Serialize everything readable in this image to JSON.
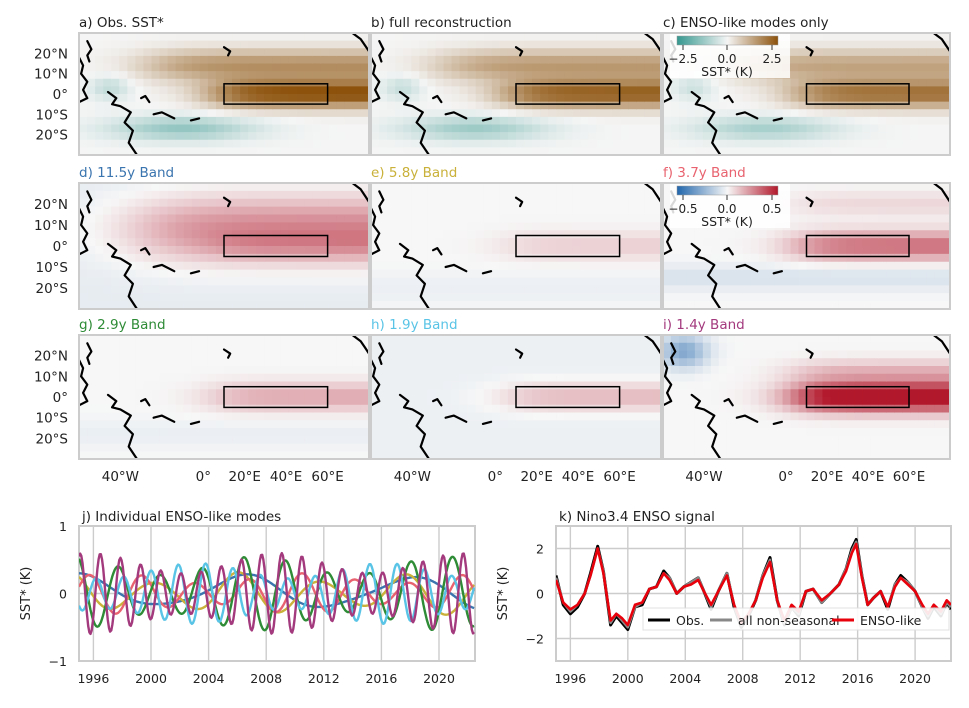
{
  "colors": {
    "sst_neg": "#35978f",
    "sst_pos": "#8c510a",
    "band_neg": "#2166ac",
    "band_pos": "#b2182b",
    "frame": "#cccccc",
    "grid": "#cccccc",
    "coast": "#000000"
  },
  "maps": {
    "y_ticks": [
      "20°N",
      "10°N",
      "0°",
      "10°S",
      "20°S"
    ],
    "x_ticks": [
      "40°W",
      "0°",
      "20°E",
      "40°E",
      "60°E"
    ],
    "panels": [
      {
        "title": "a) Obs. SST*",
        "color": "#222222",
        "field": "sst",
        "amp": 1.0
      },
      {
        "title": "b) full reconstruction",
        "color": "#222222",
        "field": "sst",
        "amp": 0.9
      },
      {
        "title": "c) ENSO-like modes only",
        "color": "#222222",
        "field": "sst",
        "amp": 0.8
      },
      {
        "title": "d) 11.5y Band",
        "color": "#3b75af",
        "field": "b115",
        "amp": 0.55
      },
      {
        "title": "e)  5.8y Band",
        "color": "#c9b13a",
        "field": "b58",
        "amp": 0.25
      },
      {
        "title": "f)  3.7y Band",
        "color": "#e8636f",
        "field": "b37",
        "amp": 0.5
      },
      {
        "title": "g)  2.9y Band",
        "color": "#2e8b36",
        "field": "b29",
        "amp": 0.35
      },
      {
        "title": "h)  1.9y Band",
        "color": "#5ac4e6",
        "field": "b19",
        "amp": 0.35
      },
      {
        "title": "i)  1.4y Band",
        "color": "#a33a7e",
        "field": "b14",
        "amp": 0.85
      }
    ],
    "colorbars": [
      {
        "label": "SST* (K)",
        "ticks": [
          "−2.5",
          "0.0",
          "2.5"
        ]
      },
      {
        "label": "SST* (K)",
        "ticks": [
          "−0.5",
          "0.0",
          "0.5"
        ]
      }
    ]
  },
  "chart_data": [
    {
      "type": "line",
      "title": "j) Individual ENSO-like modes",
      "ylabel": "SST* (K)",
      "xlim": [
        1995,
        2022.5
      ],
      "ylim": [
        -1,
        1
      ],
      "yticks": [
        -1,
        0,
        1
      ],
      "xticks": [
        1996,
        2000,
        2004,
        2008,
        2012,
        2016,
        2020
      ],
      "series": [
        {
          "band": "11.5y",
          "color": "#3b75af",
          "period": 11.5,
          "amp": 0.3,
          "phase": 1.6
        },
        {
          "band": "5.8y",
          "color": "#c9b13a",
          "period": 5.8,
          "amp": 0.32,
          "phase": 2.2
        },
        {
          "band": "3.7y",
          "color": "#e8636f",
          "period": 3.7,
          "amp": 0.3,
          "phase": 0.4
        },
        {
          "band": "2.9y",
          "color": "#2e8b36",
          "period": 2.9,
          "amp": 0.55,
          "phase": 1.9
        },
        {
          "band": "1.9y",
          "color": "#5ac4e6",
          "period": 1.9,
          "amp": 0.45,
          "phase": 3.9
        },
        {
          "band": "1.4y",
          "color": "#a33a7e",
          "period": 1.4,
          "amp": 0.6,
          "phase": 1.2
        }
      ]
    },
    {
      "type": "line",
      "title": "k) Nino3.4 ENSO signal",
      "ylabel": "SST* (K)",
      "xlim": [
        1995,
        2022.5
      ],
      "ylim": [
        -3,
        3
      ],
      "yticks": [
        -2,
        0,
        2
      ],
      "xticks": [
        1996,
        2000,
        2004,
        2008,
        2012,
        2016,
        2020
      ],
      "legend": {
        "placement": "bottom-right"
      },
      "x": [
        1995.0,
        1995.5,
        1996.0,
        1996.5,
        1997.0,
        1997.4,
        1997.9,
        1998.3,
        1998.8,
        1999.2,
        1999.6,
        2000.0,
        2000.5,
        2001.0,
        2001.5,
        2002.0,
        2002.5,
        2002.9,
        2003.4,
        2003.9,
        2004.4,
        2004.9,
        2005.3,
        2005.8,
        2006.3,
        2006.9,
        2007.4,
        2007.9,
        2008.4,
        2008.9,
        2009.4,
        2009.9,
        2010.4,
        2010.9,
        2011.4,
        2011.9,
        2012.4,
        2012.9,
        2013.5,
        2014.1,
        2014.7,
        2015.2,
        2015.6,
        2015.9,
        2016.3,
        2016.7,
        2017.1,
        2017.6,
        2018.1,
        2018.6,
        2019.0,
        2019.5,
        2020.0,
        2020.5,
        2020.9,
        2021.3,
        2021.8,
        2022.2,
        2022.5
      ],
      "series": [
        {
          "name": "Obs.",
          "color": "#000000",
          "values": [
            0.8,
            -0.5,
            -0.9,
            -0.6,
            0.0,
            0.9,
            2.1,
            1.0,
            -1.4,
            -1.0,
            -1.3,
            -1.6,
            -0.6,
            -0.5,
            0.2,
            0.3,
            1.0,
            0.7,
            0.0,
            0.3,
            0.5,
            0.7,
            0.1,
            -0.7,
            0.1,
            0.9,
            -0.6,
            -1.5,
            -1.0,
            -0.3,
            0.8,
            1.6,
            -0.3,
            -1.4,
            -0.6,
            -1.0,
            0.1,
            0.2,
            -0.4,
            0.0,
            0.4,
            1.1,
            2.0,
            2.4,
            0.8,
            -0.5,
            -0.2,
            0.1,
            -0.7,
            0.4,
            0.8,
            0.5,
            0.1,
            -0.6,
            -1.1,
            -0.6,
            -1.0,
            -0.4,
            -0.7
          ]
        },
        {
          "name": "all non-seasonal",
          "color": "#888888",
          "values": [
            0.7,
            -0.4,
            -0.8,
            -0.5,
            0.0,
            0.8,
            2.0,
            1.0,
            -1.3,
            -0.9,
            -1.2,
            -1.5,
            -0.6,
            -0.4,
            0.2,
            0.3,
            0.9,
            0.7,
            0.0,
            0.3,
            0.5,
            0.7,
            0.1,
            -0.6,
            0.1,
            0.9,
            -0.5,
            -1.4,
            -0.9,
            -0.3,
            0.8,
            1.5,
            -0.3,
            -1.3,
            -0.6,
            -0.9,
            0.1,
            0.2,
            -0.4,
            0.0,
            0.4,
            1.1,
            1.9,
            2.3,
            0.8,
            -0.5,
            -0.2,
            0.1,
            -0.6,
            0.4,
            0.7,
            0.5,
            0.1,
            -0.6,
            -1.0,
            -0.5,
            -0.9,
            -0.4,
            -0.6
          ]
        },
        {
          "name": "ENSO-like",
          "color": "#e8000b",
          "values": [
            0.6,
            -0.4,
            -0.7,
            -0.5,
            0.0,
            0.8,
            2.0,
            0.9,
            -1.2,
            -0.9,
            -1.1,
            -1.4,
            -0.5,
            -0.4,
            0.2,
            0.3,
            0.9,
            0.6,
            0.0,
            0.3,
            0.4,
            0.6,
            0.1,
            -0.5,
            0.1,
            0.8,
            -0.5,
            -1.3,
            -0.9,
            -0.3,
            0.7,
            1.4,
            -0.3,
            -1.2,
            -0.5,
            -0.8,
            0.1,
            0.2,
            -0.3,
            0.0,
            0.4,
            1.0,
            1.8,
            2.2,
            0.7,
            -0.5,
            -0.2,
            0.1,
            -0.6,
            0.3,
            0.7,
            0.4,
            0.1,
            -0.5,
            -0.9,
            -0.5,
            -0.8,
            -0.3,
            -0.5
          ]
        }
      ]
    }
  ]
}
